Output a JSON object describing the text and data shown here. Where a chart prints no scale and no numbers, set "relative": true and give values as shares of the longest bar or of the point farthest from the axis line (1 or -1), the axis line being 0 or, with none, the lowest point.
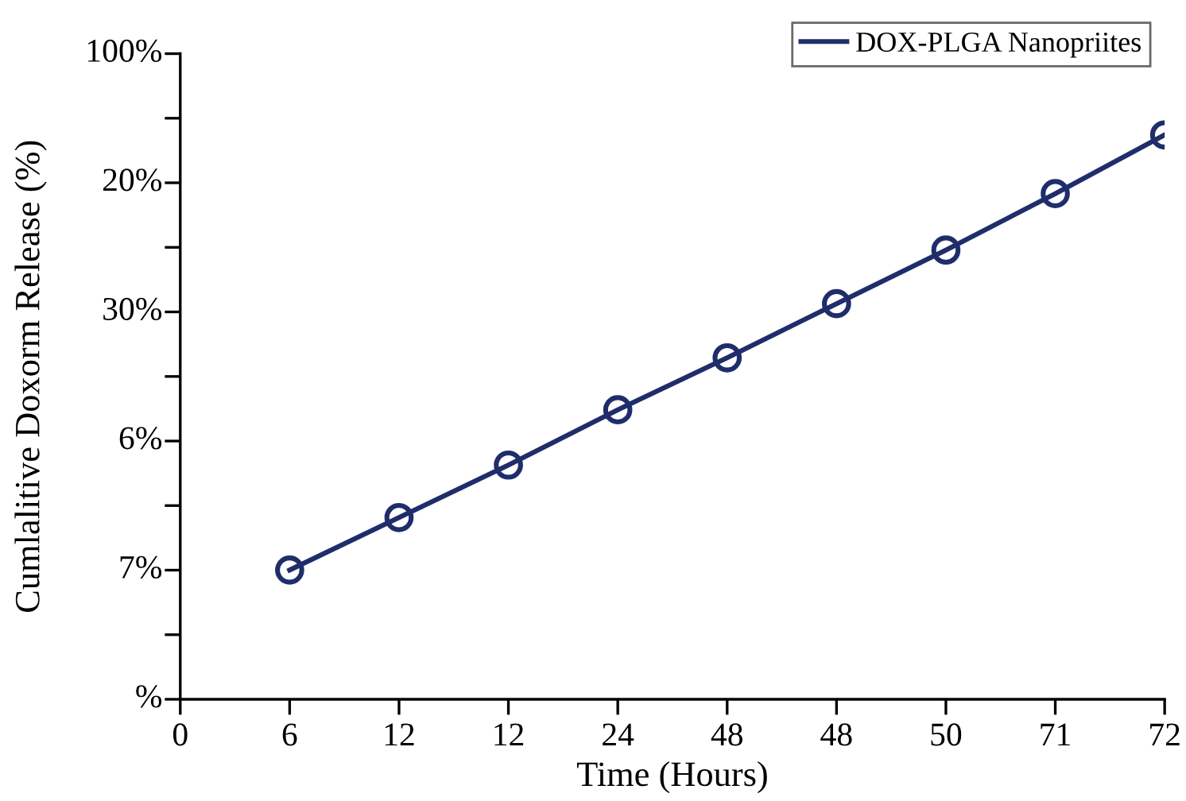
{
  "chart_data": {
    "type": "line",
    "xlabel": "Time (Hours)",
    "ylabel": "Cumlalitive Doxorm Release (%)",
    "categories": [
      "0",
      "6",
      "12",
      "12",
      "24",
      "48",
      "48",
      "50",
      "71",
      "72"
    ],
    "relative": true,
    "series": [
      {
        "name": "DOX-PLGA Nanopriites",
        "color": "#1f2d6b",
        "values": [
          null,
          0.229,
          0.322,
          0.415,
          0.513,
          0.605,
          0.701,
          0.796,
          0.896,
          1
        ]
      }
    ],
    "annotations": [
      "%",
      "7%",
      "6%",
      "30%",
      "20%",
      "100%"
    ],
    "marker": "circle",
    "line_style": "solid",
    "legend": "top right",
    "grid": false
  }
}
